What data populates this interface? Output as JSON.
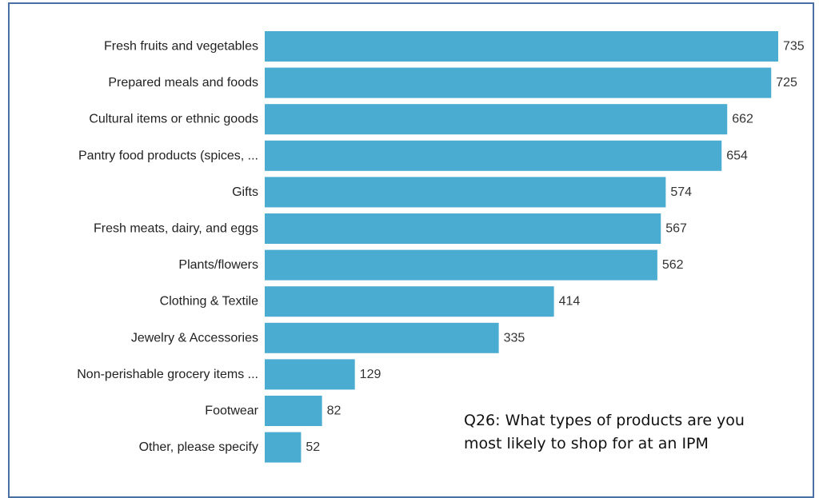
{
  "chart_data": {
    "type": "bar",
    "orientation": "horizontal",
    "categories": [
      "Fresh fruits and vegetables",
      "Prepared meals and foods",
      "Cultural items or ethnic goods",
      "Pantry food products (spices, ...",
      "Gifts",
      "Fresh meats, dairy, and eggs",
      "Plants/flowers",
      "Clothing & Textile",
      "Jewelry & Accessories",
      "Non-perishable grocery items ...",
      "Footwear",
      "Other, please specify"
    ],
    "values": [
      735,
      725,
      662,
      654,
      574,
      567,
      562,
      414,
      335,
      129,
      82,
      52
    ],
    "xlim": [
      0,
      735
    ],
    "bar_color": "#4bacd1",
    "grid": false,
    "legend": "none"
  },
  "caption": {
    "line1": "Q26: What types of products are you",
    "line2": "most likely to shop for at an IPM"
  }
}
